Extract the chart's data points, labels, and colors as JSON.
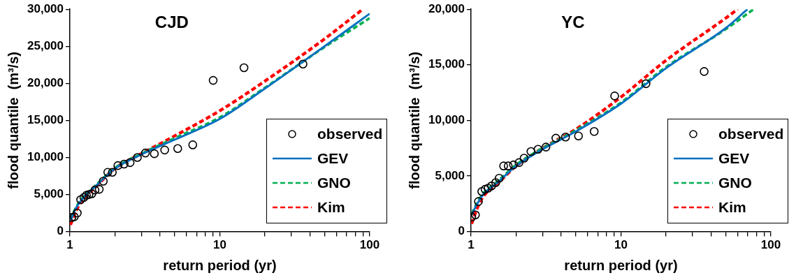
{
  "chart_data": [
    {
      "type": "line",
      "title": "CJD",
      "xlabel": "return period (yr)",
      "ylabel": "flood quantile  (m³/s)",
      "log": "x",
      "xlim": [
        1,
        100
      ],
      "xticks": [
        1,
        {
          "value": 2,
          "label": null
        },
        {
          "value": 3,
          "label": null
        },
        {
          "value": 4,
          "label": null
        },
        {
          "value": 5,
          "label": null
        },
        {
          "value": 6,
          "label": null
        },
        {
          "value": 7,
          "label": null
        },
        {
          "value": 8,
          "label": null
        },
        {
          "value": 9,
          "label": null
        },
        10,
        {
          "value": 20,
          "label": null
        },
        {
          "value": 30,
          "label": null
        },
        {
          "value": 40,
          "label": null
        },
        {
          "value": 50,
          "label": null
        },
        {
          "value": 60,
          "label": null
        },
        {
          "value": 70,
          "label": null
        },
        {
          "value": 80,
          "label": null
        },
        {
          "value": 90,
          "label": null
        },
        100
      ],
      "ylim": [
        0,
        30000
      ],
      "yticks": [
        0,
        {
          "value": 5000,
          "label": "5,000"
        },
        {
          "value": 10000,
          "label": "10,000"
        },
        {
          "value": 15000,
          "label": "15,000"
        },
        {
          "value": 20000,
          "label": "20,000"
        },
        {
          "value": 25000,
          "label": "25,000"
        },
        {
          "value": 30000,
          "label": "30,000"
        }
      ],
      "legend": "bottom right",
      "series": [
        {
          "name": "observed",
          "type": "scatter",
          "marker": "circle",
          "color": "#000000",
          "x": [
            1.03,
            1.07,
            1.12,
            1.18,
            1.24,
            1.29,
            1.34,
            1.4,
            1.47,
            1.57,
            1.67,
            1.79,
            1.92,
            2.09,
            2.3,
            2.52,
            2.82,
            3.19,
            3.66,
            4.29,
            5.24,
            6.6,
            9.03,
            14.5,
            35.9
          ],
          "values": [
            1900,
            2000,
            2500,
            4300,
            4600,
            4900,
            5000,
            5100,
            5600,
            5700,
            6800,
            8000,
            8000,
            8900,
            9100,
            9300,
            10000,
            10600,
            10500,
            11000,
            11200,
            11700,
            20400,
            22100,
            22600
          ]
        },
        {
          "name": "GEV",
          "type": "line",
          "marker": "none",
          "line_style": "solid",
          "color": "#0070c0",
          "x": [
            1.01,
            1.1,
            1.2,
            1.5,
            2,
            3,
            5,
            10,
            20,
            50,
            100
          ],
          "values": [
            1500,
            3200,
            4300,
            6200,
            8500,
            10400,
            12400,
            15200,
            19300,
            25000,
            29400
          ]
        },
        {
          "name": "GNO",
          "type": "line",
          "marker": "none",
          "line_style": "dashed",
          "color": "#00b050",
          "x": [
            1.01,
            1.1,
            1.2,
            1.5,
            2,
            3,
            5,
            10,
            20,
            50,
            100
          ],
          "values": [
            1600,
            3300,
            4400,
            6300,
            8600,
            10500,
            12600,
            15400,
            19400,
            24900,
            28800
          ]
        },
        {
          "name": "Kim",
          "type": "line",
          "marker": "none",
          "line_style": "dashed",
          "color": "#ff0000",
          "x": [
            1.01,
            1.1,
            1.2,
            1.5,
            2,
            3,
            5,
            10,
            20,
            50,
            90
          ],
          "values": [
            900,
            2800,
            4100,
            6100,
            8500,
            10500,
            12900,
            16300,
            20300,
            26000,
            30000
          ]
        }
      ]
    },
    {
      "type": "line",
      "title": "YC",
      "xlabel": "return period (yr)",
      "ylabel": "flood quantile  (m³/s)",
      "log": "x",
      "xlim": [
        1,
        100
      ],
      "xticks": [
        1,
        {
          "value": 2,
          "label": null
        },
        {
          "value": 3,
          "label": null
        },
        {
          "value": 4,
          "label": null
        },
        {
          "value": 5,
          "label": null
        },
        {
          "value": 6,
          "label": null
        },
        {
          "value": 7,
          "label": null
        },
        {
          "value": 8,
          "label": null
        },
        {
          "value": 9,
          "label": null
        },
        10,
        {
          "value": 20,
          "label": null
        },
        {
          "value": 30,
          "label": null
        },
        {
          "value": 40,
          "label": null
        },
        {
          "value": 50,
          "label": null
        },
        {
          "value": 60,
          "label": null
        },
        {
          "value": 70,
          "label": null
        },
        {
          "value": 80,
          "label": null
        },
        {
          "value": 90,
          "label": null
        },
        100
      ],
      "ylim": [
        0,
        20000
      ],
      "yticks": [
        0,
        {
          "value": 5000,
          "label": "5,000"
        },
        {
          "value": 10000,
          "label": "10,000"
        },
        {
          "value": 15000,
          "label": "15,000"
        },
        {
          "value": 20000,
          "label": "20,000"
        }
      ],
      "legend": "bottom right",
      "series": [
        {
          "name": "observed",
          "type": "scatter",
          "marker": "circle",
          "color": "#000000",
          "x": [
            1.01,
            1.07,
            1.12,
            1.18,
            1.24,
            1.3,
            1.37,
            1.46,
            1.54,
            1.65,
            1.77,
            1.92,
            2.09,
            2.26,
            2.51,
            2.8,
            3.16,
            3.68,
            4.27,
            5.21,
            6.63,
            9.08,
            14.7,
            35.9
          ],
          "values": [
            1300,
            1500,
            2700,
            3600,
            3800,
            3900,
            4100,
            4400,
            4800,
            5900,
            5900,
            6000,
            6200,
            6600,
            7200,
            7400,
            7600,
            8400,
            8500,
            8600,
            9000,
            12200,
            13300,
            14400
          ]
        },
        {
          "name": "GEV",
          "type": "line",
          "marker": "none",
          "line_style": "solid",
          "color": "#0070c0",
          "x": [
            1.01,
            1.1,
            1.2,
            1.5,
            2,
            3,
            5,
            10,
            20,
            50,
            69.8
          ],
          "values": [
            1500,
            2500,
            3300,
            4400,
            5900,
            7400,
            9000,
            11500,
            14700,
            18300,
            20000
          ]
        },
        {
          "name": "GNO",
          "type": "line",
          "marker": "none",
          "line_style": "dashed",
          "color": "#00b050",
          "x": [
            1.01,
            1.1,
            1.2,
            1.5,
            2,
            3,
            5,
            10,
            20,
            50,
            76.7
          ],
          "values": [
            1600,
            2600,
            3400,
            4500,
            6000,
            7500,
            9100,
            11600,
            14800,
            18200,
            20000
          ]
        },
        {
          "name": "Kim",
          "type": "line",
          "marker": "none",
          "line_style": "dashed",
          "color": "#ff0000",
          "x": [
            1.01,
            1.1,
            1.2,
            1.5,
            2,
            3,
            5,
            10,
            20,
            50,
            60
          ],
          "values": [
            700,
            2100,
            3100,
            4300,
            5900,
            7500,
            9200,
            12100,
            15400,
            19200,
            20000
          ]
        }
      ]
    }
  ]
}
